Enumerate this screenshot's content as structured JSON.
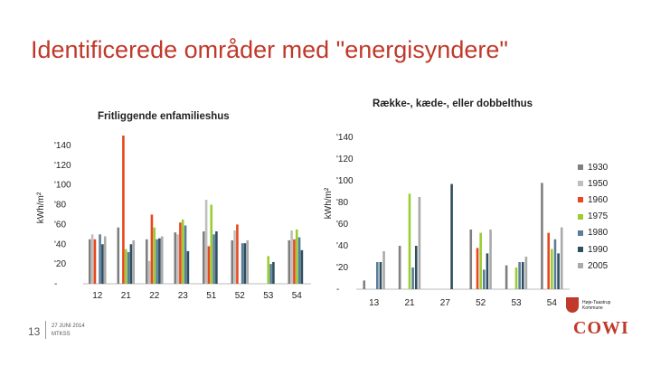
{
  "slide": {
    "title": "Identificerede områder med \"energisyndere\"",
    "page_number": "13",
    "date_lines": [
      "27 JUNI 2014",
      "MTKSS"
    ]
  },
  "logos": {
    "municipality_lines": [
      "Høje-Taastrup",
      "Kommune"
    ],
    "cowi": "COWI"
  },
  "colors": {
    "1930": "#7f7f7f",
    "1950": "#bfbfbf",
    "1960": "#e8461e",
    "1975": "#9acd32",
    "1980": "#5a7e9a",
    "1990": "#2f4f5f",
    "2005": "#aaaaaa"
  },
  "chart_data": [
    {
      "type": "bar",
      "title": "Fritliggende enfamilieshus",
      "ylabel": "kWh/m²",
      "ylim": [
        0,
        150
      ],
      "yticks": [
        0,
        20,
        40,
        60,
        80,
        100,
        120,
        140
      ],
      "ytick_labels": [
        "-",
        "'20",
        "'40",
        "'60",
        "'80",
        "'100",
        "'120",
        "'140"
      ],
      "categories": [
        "12",
        "21",
        "22",
        "23",
        "51",
        "52",
        "53",
        "54"
      ],
      "series": [
        {
          "name": "1930",
          "values": [
            45,
            57,
            45,
            52,
            53,
            44,
            0,
            44
          ]
        },
        {
          "name": "1950",
          "values": [
            50,
            0,
            23,
            50,
            85,
            54,
            0,
            54
          ]
        },
        {
          "name": "1960",
          "values": [
            45,
            150,
            70,
            62,
            38,
            60,
            0,
            45
          ]
        },
        {
          "name": "1975",
          "values": [
            0,
            35,
            57,
            65,
            80,
            0,
            28,
            55
          ]
        },
        {
          "name": "1980",
          "values": [
            50,
            32,
            45,
            59,
            50,
            41,
            20,
            47
          ]
        },
        {
          "name": "1990",
          "values": [
            40,
            40,
            46,
            33,
            53,
            41,
            22,
            34
          ]
        },
        {
          "name": "2005",
          "values": [
            48,
            44,
            48,
            0,
            0,
            44,
            0,
            0
          ]
        }
      ]
    },
    {
      "type": "bar",
      "title": "Række-, kæde-, eller dobbelthus",
      "ylabel": "kWh/m²",
      "ylim": [
        0,
        150
      ],
      "yticks": [
        0,
        20,
        40,
        60,
        80,
        100,
        120,
        140
      ],
      "ytick_labels": [
        "-",
        "'20",
        "'40",
        "'60",
        "'80",
        "'100",
        "'120",
        "'140"
      ],
      "categories": [
        "13",
        "21",
        "27",
        "52",
        "53",
        "54"
      ],
      "series": [
        {
          "name": "1930",
          "values": [
            8,
            40,
            0,
            55,
            22,
            98
          ]
        },
        {
          "name": "1950",
          "values": [
            0,
            0,
            0,
            0,
            0,
            0
          ]
        },
        {
          "name": "1960",
          "values": [
            0,
            0,
            0,
            38,
            0,
            52
          ]
        },
        {
          "name": "1975",
          "values": [
            0,
            88,
            0,
            52,
            20,
            37
          ]
        },
        {
          "name": "1980",
          "values": [
            25,
            20,
            0,
            18,
            25,
            46
          ]
        },
        {
          "name": "1990",
          "values": [
            25,
            40,
            97,
            33,
            25,
            33
          ]
        },
        {
          "name": "2005",
          "values": [
            35,
            85,
            0,
            55,
            30,
            57
          ]
        }
      ]
    }
  ]
}
